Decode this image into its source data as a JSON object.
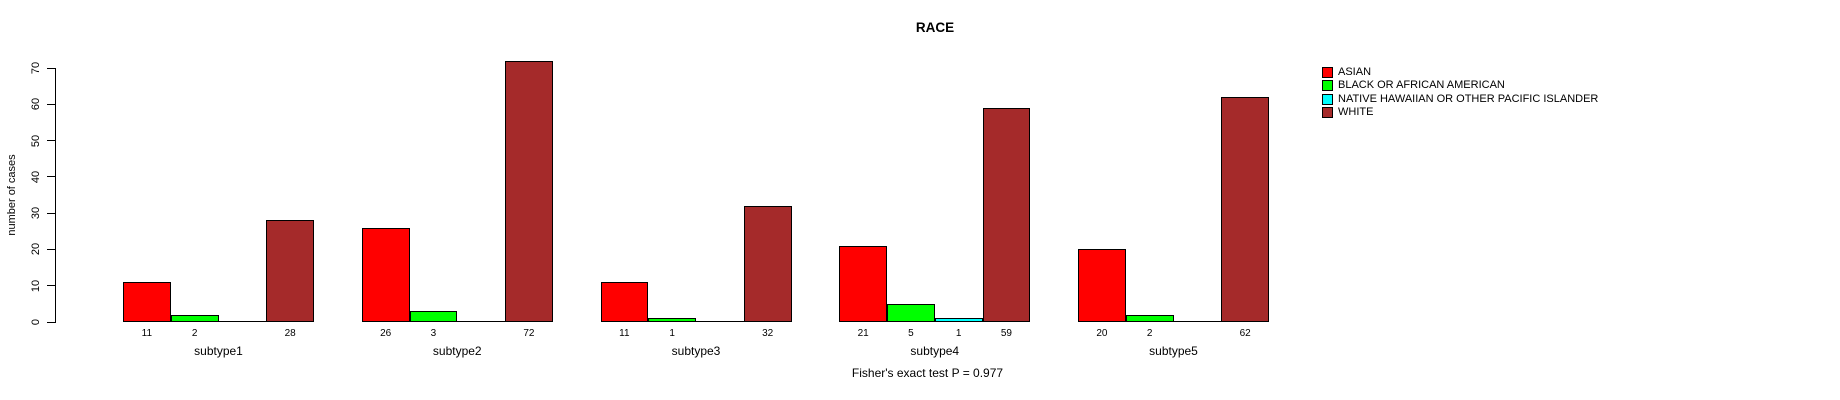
{
  "chart_data": {
    "type": "bar",
    "title": "RACE",
    "ylabel": "number of cases",
    "footer": "Fisher's exact test P = 0.977",
    "ylim": [
      0,
      70
    ],
    "yticks": [
      0,
      10,
      20,
      30,
      40,
      50,
      60,
      70
    ],
    "categories": [
      "subtype1",
      "subtype2",
      "subtype3",
      "subtype4",
      "subtype5"
    ],
    "series": [
      {
        "name": "ASIAN",
        "color": "#FF0000",
        "values": [
          11,
          26,
          11,
          21,
          20
        ]
      },
      {
        "name": "BLACK OR AFRICAN AMERICAN",
        "color": "#00FF00",
        "values": [
          2,
          3,
          1,
          5,
          2
        ]
      },
      {
        "name": "NATIVE HAWAIIAN OR OTHER PACIFIC ISLANDER",
        "color": "#00FFFF",
        "values": [
          0,
          0,
          0,
          1,
          0
        ]
      },
      {
        "name": "WHITE",
        "color": "#A52A2A",
        "values": [
          28,
          72,
          32,
          59,
          62
        ]
      }
    ],
    "bar_value_labels": "shown below baseline for non-zero bars",
    "legend_position": "top-right",
    "grid": false,
    "background": "#FFFFFF"
  }
}
